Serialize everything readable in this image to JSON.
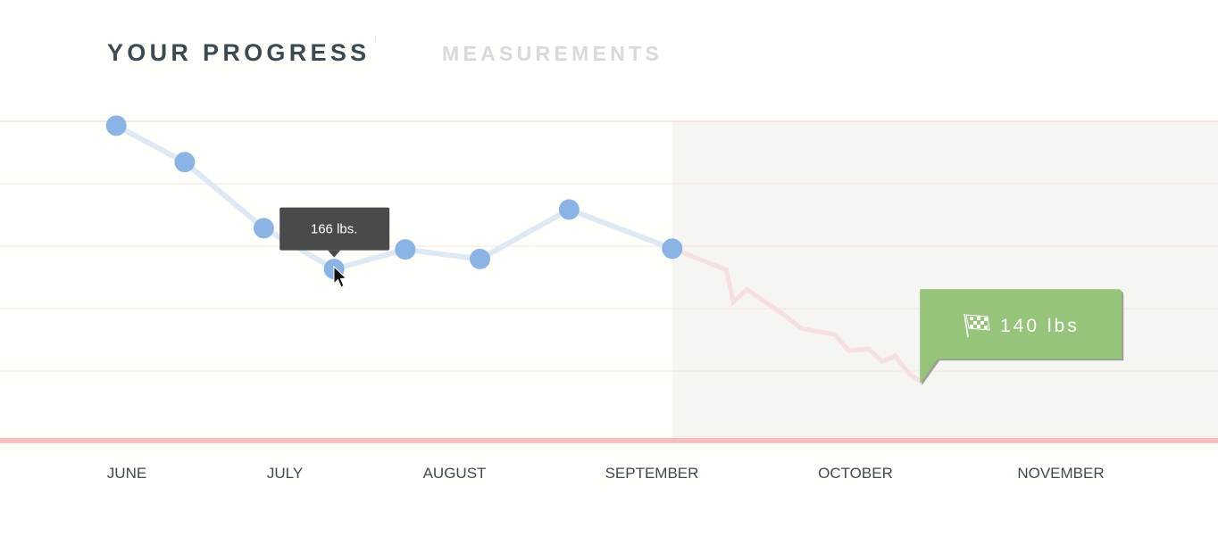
{
  "tabs": [
    {
      "label": "YOUR PROGRESS",
      "active": true
    },
    {
      "label": "MEASUREMENTS",
      "active": false
    }
  ],
  "chart_data": {
    "type": "line",
    "ylim": [
      126.5,
      200
    ],
    "grid": true,
    "x_tick_labels": [
      "JUNE",
      "JULY",
      "AUGUST",
      "SEPTEMBER",
      "OCTOBER",
      "NOVEMBER"
    ],
    "series": [
      {
        "kind": "actual",
        "color": "#8ab4e6",
        "points": [
          {
            "date": "05-30",
            "value": 199
          },
          {
            "date": "06-12",
            "value": 190.6
          },
          {
            "date": "06-27",
            "value": 175.4
          },
          {
            "date": "07-10",
            "value": 166
          },
          {
            "date": "07-23",
            "value": 170.5
          },
          {
            "date": "08-05",
            "value": 168.3
          },
          {
            "date": "08-19",
            "value": 179.7
          },
          {
            "date": "09-04",
            "value": 170.7
          }
        ]
      },
      {
        "kind": "projection",
        "color": "#f5dfe0",
        "points": [
          {
            "date": "09-04",
            "value": 170.7
          },
          {
            "date": "09-12",
            "value": 165.8
          },
          {
            "date": "09-13",
            "value": 158.4
          },
          {
            "date": "09-15",
            "value": 161.3
          },
          {
            "date": "09-20",
            "value": 156
          },
          {
            "date": "09-23",
            "value": 152.3
          },
          {
            "date": "09-28",
            "value": 150.9
          },
          {
            "date": "09-30",
            "value": 147.2
          },
          {
            "date": "10-03",
            "value": 147.6
          },
          {
            "date": "10-05",
            "value": 144.7
          },
          {
            "date": "10-07",
            "value": 146
          },
          {
            "date": "10-09",
            "value": 142
          },
          {
            "date": "10-11",
            "value": 140
          }
        ]
      }
    ],
    "tooltip": {
      "label": "166 lbs.",
      "point_index": 3
    },
    "goal": {
      "label": "140 lbs",
      "icon": "checkered-flag-icon",
      "color": "#95c47a"
    }
  },
  "colors": {
    "forecast_bg": "#f5f5f1",
    "grid": "#fbe3e3",
    "baseline": "#fdbdbd",
    "tooltip_bg": "#4a4a4a"
  }
}
